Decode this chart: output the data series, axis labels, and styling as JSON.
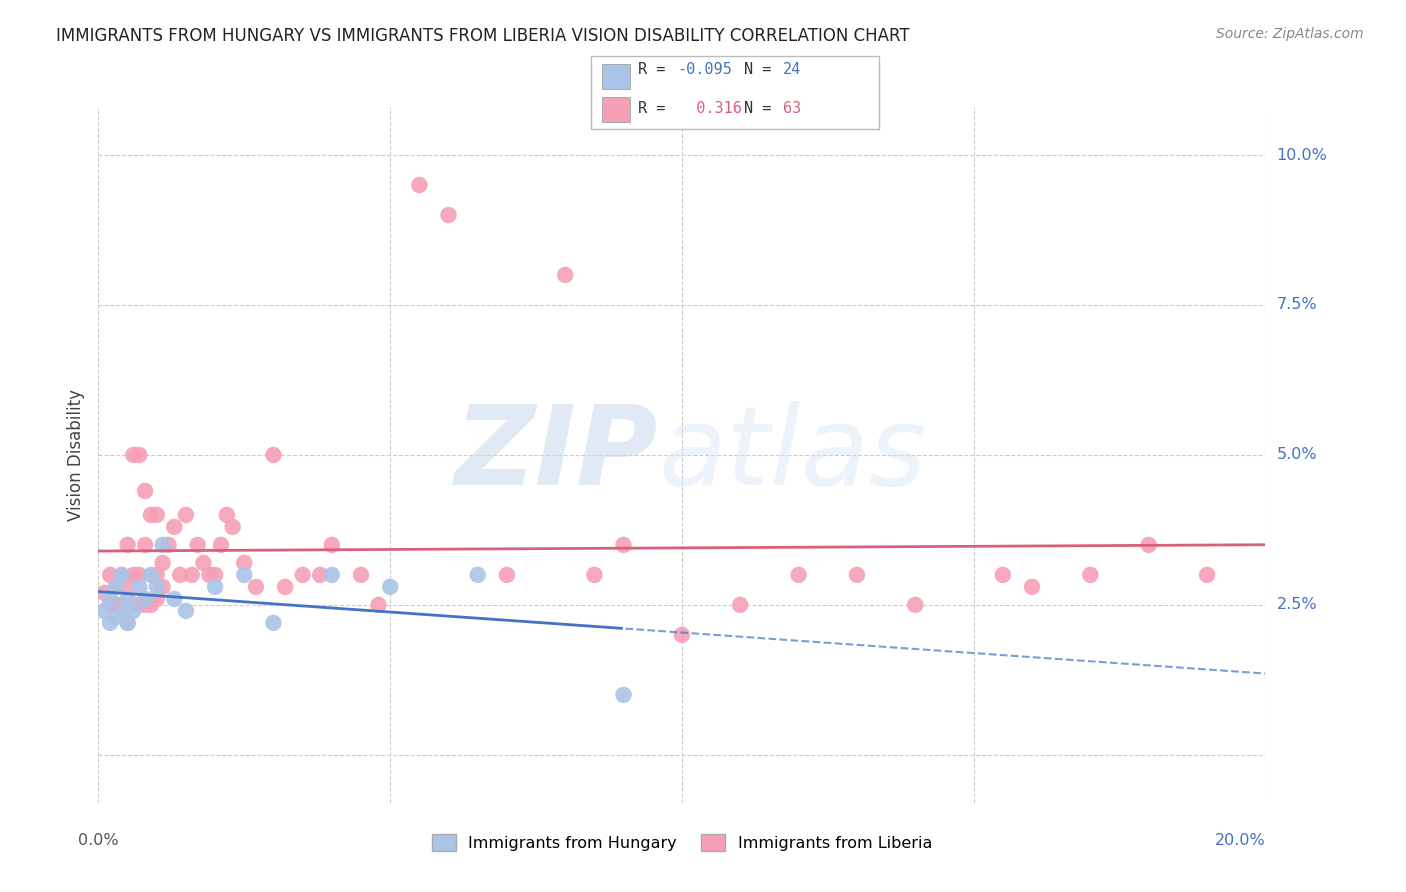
{
  "title": "IMMIGRANTS FROM HUNGARY VS IMMIGRANTS FROM LIBERIA VISION DISABILITY CORRELATION CHART",
  "source": "Source: ZipAtlas.com",
  "ylabel": "Vision Disability",
  "xlim": [
    0.0,
    0.2
  ],
  "ylim": [
    -0.008,
    0.108
  ],
  "yticks": [
    0.0,
    0.025,
    0.05,
    0.075,
    0.1
  ],
  "ytick_labels": [
    "",
    "2.5%",
    "5.0%",
    "7.5%",
    "10.0%"
  ],
  "hungary_color": "#aac4e8",
  "liberia_color": "#f5a0b5",
  "hungary_line_color": "#4472c4",
  "liberia_line_color": "#d9607a",
  "hungary_R": -0.095,
  "hungary_N": 24,
  "liberia_R": 0.316,
  "liberia_N": 63,
  "hungary_x": [
    0.001,
    0.002,
    0.002,
    0.003,
    0.003,
    0.004,
    0.004,
    0.005,
    0.005,
    0.006,
    0.007,
    0.008,
    0.009,
    0.01,
    0.011,
    0.013,
    0.015,
    0.02,
    0.025,
    0.03,
    0.04,
    0.05,
    0.065,
    0.09
  ],
  "hungary_y": [
    0.024,
    0.022,
    0.026,
    0.023,
    0.028,
    0.024,
    0.03,
    0.022,
    0.026,
    0.024,
    0.028,
    0.026,
    0.03,
    0.028,
    0.035,
    0.026,
    0.024,
    0.028,
    0.03,
    0.022,
    0.03,
    0.028,
    0.03,
    0.01
  ],
  "liberia_x": [
    0.001,
    0.002,
    0.002,
    0.003,
    0.003,
    0.004,
    0.004,
    0.005,
    0.005,
    0.005,
    0.006,
    0.006,
    0.006,
    0.007,
    0.007,
    0.007,
    0.008,
    0.008,
    0.008,
    0.009,
    0.009,
    0.01,
    0.01,
    0.01,
    0.011,
    0.011,
    0.012,
    0.013,
    0.014,
    0.015,
    0.016,
    0.017,
    0.018,
    0.019,
    0.02,
    0.021,
    0.022,
    0.023,
    0.025,
    0.027,
    0.03,
    0.032,
    0.035,
    0.038,
    0.04,
    0.045,
    0.048,
    0.055,
    0.06,
    0.07,
    0.08,
    0.085,
    0.09,
    0.1,
    0.11,
    0.12,
    0.13,
    0.14,
    0.155,
    0.16,
    0.17,
    0.18,
    0.19
  ],
  "liberia_y": [
    0.027,
    0.025,
    0.03,
    0.025,
    0.028,
    0.025,
    0.03,
    0.022,
    0.028,
    0.035,
    0.025,
    0.03,
    0.05,
    0.025,
    0.03,
    0.05,
    0.025,
    0.035,
    0.044,
    0.025,
    0.04,
    0.026,
    0.03,
    0.04,
    0.028,
    0.032,
    0.035,
    0.038,
    0.03,
    0.04,
    0.03,
    0.035,
    0.032,
    0.03,
    0.03,
    0.035,
    0.04,
    0.038,
    0.032,
    0.028,
    0.05,
    0.028,
    0.03,
    0.03,
    0.035,
    0.03,
    0.025,
    0.095,
    0.09,
    0.03,
    0.08,
    0.03,
    0.035,
    0.02,
    0.025,
    0.03,
    0.03,
    0.025,
    0.03,
    0.028,
    0.03,
    0.035,
    0.03
  ],
  "watermark_zip": "ZIP",
  "watermark_atlas": "atlas",
  "background_color": "#ffffff",
  "grid_color": "#cccccc",
  "hungary_line_x_end": 0.09
}
